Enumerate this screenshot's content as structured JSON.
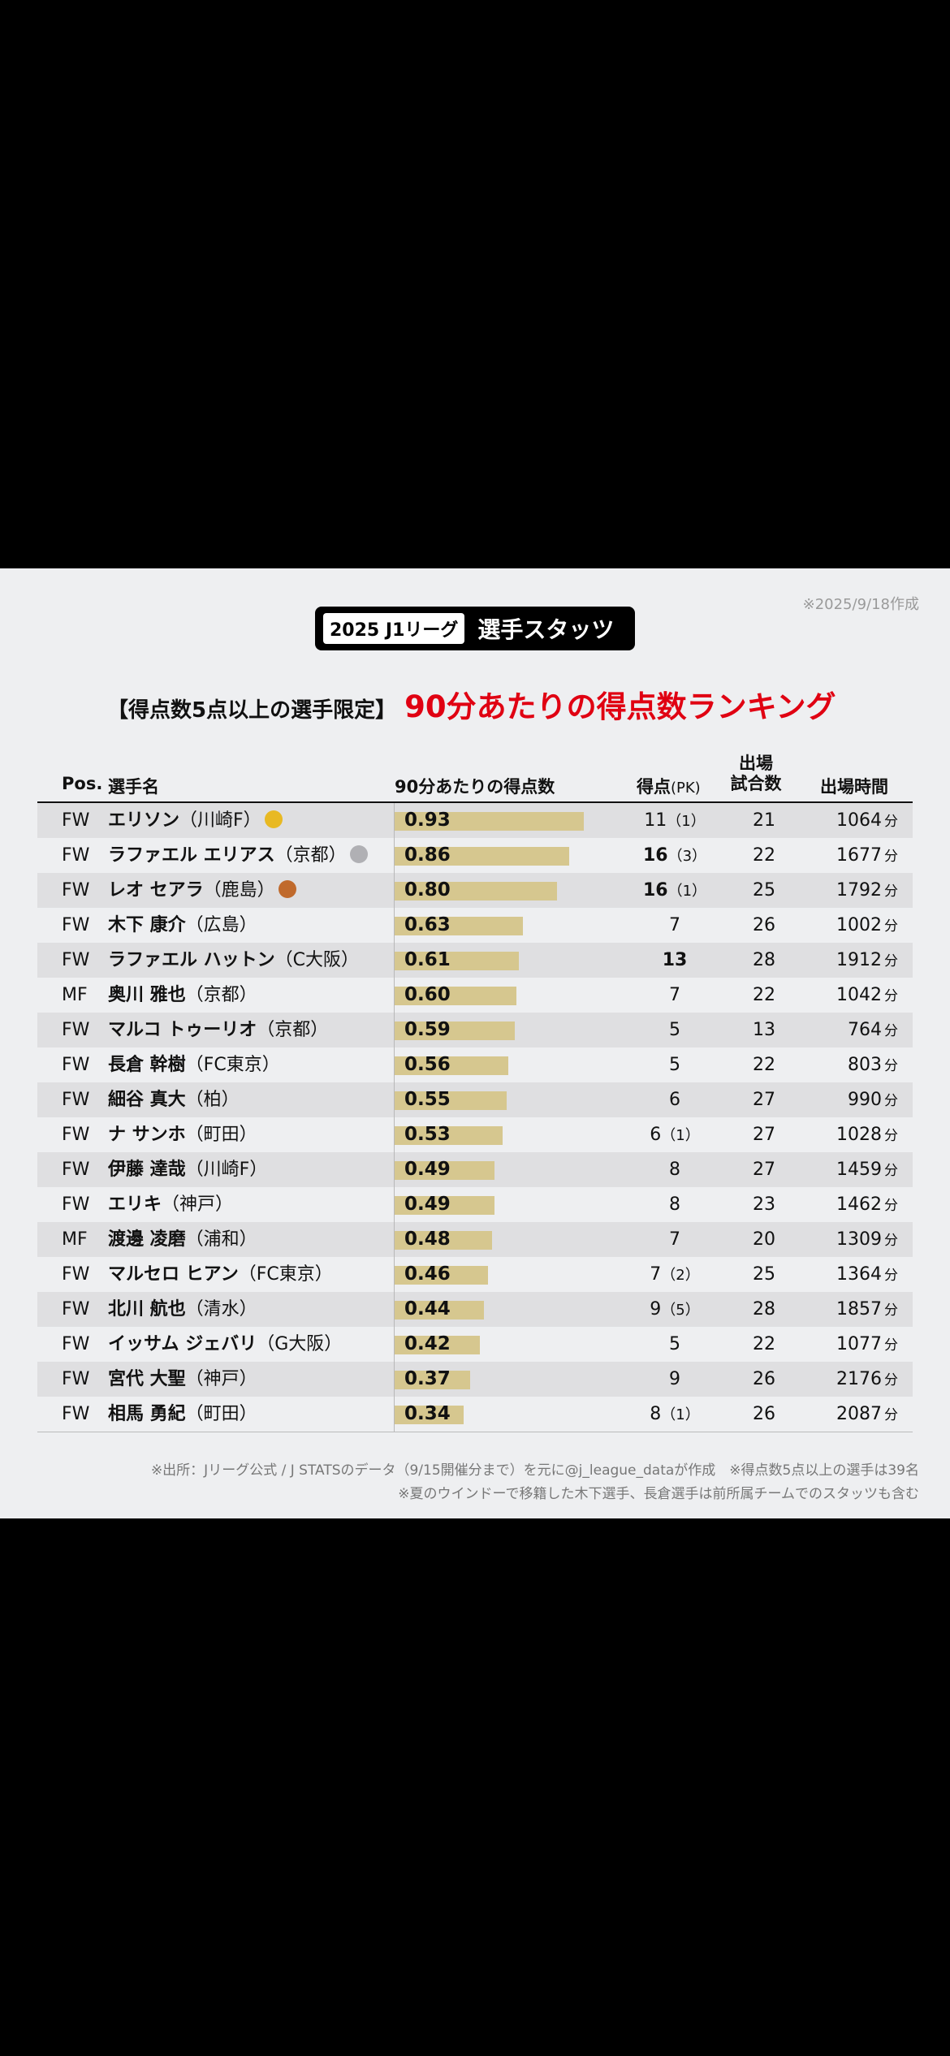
{
  "created_note": "※2025/9/18作成",
  "title": {
    "tag": "2025 J1リーグ",
    "main": "選手スタッツ"
  },
  "subtitle": {
    "prefix": "【得点数5点以上の選手限定】",
    "main": "90分あたりの得点数ランキング"
  },
  "headers": {
    "pos": "Pos.",
    "name": "選手名",
    "per90": "90分あたりの得点数",
    "goals": "得点",
    "pk": "(PK)",
    "apps_line1": "出場",
    "apps_line2": "試合数",
    "minutes": "出場時間"
  },
  "minutes_unit": "分",
  "colors": {
    "bar": "#d6c78f",
    "accent_red": "#e00012",
    "gold": "#e8b923",
    "silver": "#b0b0b4",
    "bronze": "#c06a2c"
  },
  "chart_data": {
    "type": "table",
    "bar_max": 1.0,
    "rows": [
      {
        "pos": "FW",
        "name": "エリソン",
        "team": "（川崎F）",
        "per90": "0.93",
        "goals": "11",
        "pk": "（1）",
        "apps": "21",
        "minutes": "1064",
        "medal": "gold",
        "bold_goals": false
      },
      {
        "pos": "FW",
        "name": "ラファエル エリアス",
        "team": "（京都）",
        "per90": "0.86",
        "goals": "16",
        "pk": "（3）",
        "apps": "22",
        "minutes": "1677",
        "medal": "silver",
        "bold_goals": true
      },
      {
        "pos": "FW",
        "name": "レオ セアラ",
        "team": "（鹿島）",
        "per90": "0.80",
        "goals": "16",
        "pk": "（1）",
        "apps": "25",
        "minutes": "1792",
        "medal": "bronze",
        "bold_goals": true
      },
      {
        "pos": "FW",
        "name": "木下 康介",
        "team": "（広島）",
        "per90": "0.63",
        "goals": "7",
        "pk": "",
        "apps": "26",
        "minutes": "1002",
        "medal": "",
        "bold_goals": false
      },
      {
        "pos": "FW",
        "name": "ラファエル ハットン",
        "team": "（C大阪）",
        "per90": "0.61",
        "goals": "13",
        "pk": "",
        "apps": "28",
        "minutes": "1912",
        "medal": "",
        "bold_goals": true
      },
      {
        "pos": "MF",
        "name": "奥川 雅也",
        "team": "（京都）",
        "per90": "0.60",
        "goals": "7",
        "pk": "",
        "apps": "22",
        "minutes": "1042",
        "medal": "",
        "bold_goals": false
      },
      {
        "pos": "FW",
        "name": "マルコ トゥーリオ",
        "team": "（京都）",
        "per90": "0.59",
        "goals": "5",
        "pk": "",
        "apps": "13",
        "minutes": "764",
        "medal": "",
        "bold_goals": false
      },
      {
        "pos": "FW",
        "name": "長倉 幹樹",
        "team": "（FC東京）",
        "per90": "0.56",
        "goals": "5",
        "pk": "",
        "apps": "22",
        "minutes": "803",
        "medal": "",
        "bold_goals": false
      },
      {
        "pos": "FW",
        "name": "細谷 真大",
        "team": "（柏）",
        "per90": "0.55",
        "goals": "6",
        "pk": "",
        "apps": "27",
        "minutes": "990",
        "medal": "",
        "bold_goals": false
      },
      {
        "pos": "FW",
        "name": "ナ サンホ",
        "team": "（町田）",
        "per90": "0.53",
        "goals": "6",
        "pk": "（1）",
        "apps": "27",
        "minutes": "1028",
        "medal": "",
        "bold_goals": false
      },
      {
        "pos": "FW",
        "name": "伊藤 達哉",
        "team": "（川崎F）",
        "per90": "0.49",
        "goals": "8",
        "pk": "",
        "apps": "27",
        "minutes": "1459",
        "medal": "",
        "bold_goals": false
      },
      {
        "pos": "FW",
        "name": "エリキ",
        "team": "（神戸）",
        "per90": "0.49",
        "goals": "8",
        "pk": "",
        "apps": "23",
        "minutes": "1462",
        "medal": "",
        "bold_goals": false
      },
      {
        "pos": "MF",
        "name": "渡邊 凌磨",
        "team": "（浦和）",
        "per90": "0.48",
        "goals": "7",
        "pk": "",
        "apps": "20",
        "minutes": "1309",
        "medal": "",
        "bold_goals": false
      },
      {
        "pos": "FW",
        "name": "マルセロ ヒアン",
        "team": "（FC東京）",
        "per90": "0.46",
        "goals": "7",
        "pk": "（2）",
        "apps": "25",
        "minutes": "1364",
        "medal": "",
        "bold_goals": false
      },
      {
        "pos": "FW",
        "name": "北川 航也",
        "team": "（清水）",
        "per90": "0.44",
        "goals": "9",
        "pk": "（5）",
        "apps": "28",
        "minutes": "1857",
        "medal": "",
        "bold_goals": false
      },
      {
        "pos": "FW",
        "name": "イッサム ジェバリ",
        "team": "（G大阪）",
        "per90": "0.42",
        "goals": "5",
        "pk": "",
        "apps": "22",
        "minutes": "1077",
        "medal": "",
        "bold_goals": false
      },
      {
        "pos": "FW",
        "name": "宮代 大聖",
        "team": "（神戸）",
        "per90": "0.37",
        "goals": "9",
        "pk": "",
        "apps": "26",
        "minutes": "2176",
        "medal": "",
        "bold_goals": false
      },
      {
        "pos": "FW",
        "name": "相馬 勇紀",
        "team": "（町田）",
        "per90": "0.34",
        "goals": "8",
        "pk": "（1）",
        "apps": "26",
        "minutes": "2087",
        "medal": "",
        "bold_goals": false
      }
    ]
  },
  "footnotes": [
    "※出所：Jリーグ公式 / J STATSのデータ（9/15開催分まで）を元に@j_league_dataが作成　※得点数5点以上の選手は39名",
    "※夏のウインドーで移籍した木下選手、長倉選手は前所属チームでのスタッツも含む"
  ]
}
